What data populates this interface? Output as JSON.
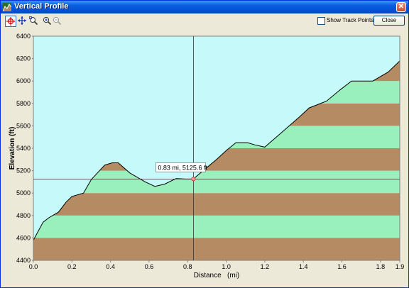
{
  "window": {
    "title": "Vertical Profile"
  },
  "toolbar": {
    "tools": [
      {
        "name": "crosshair-tool-icon",
        "active": true
      },
      {
        "name": "pan-tool-icon",
        "active": false
      },
      {
        "name": "zoom-box-tool-icon",
        "active": false
      },
      {
        "name": "zoom-in-icon",
        "active": false
      },
      {
        "name": "zoom-out-icon",
        "active": false
      }
    ],
    "show_track_points_label": "Show Track Points",
    "show_track_points_checked": false,
    "close_label": "Close"
  },
  "chart_data": {
    "type": "area",
    "xlabel": "Distance   (mi)",
    "ylabel": "Elevation (ft)",
    "xlim": [
      0.0,
      1.9
    ],
    "ylim": [
      4400,
      6400
    ],
    "x_ticks": [
      "0.0",
      "0.2",
      "0.4",
      "0.6",
      "0.8",
      "1.0",
      "1.2",
      "1.4",
      "1.6",
      "1.8",
      "1.9"
    ],
    "x_tick_values": [
      0.0,
      0.2,
      0.4,
      0.6,
      0.8,
      1.0,
      1.2,
      1.4,
      1.6,
      1.8,
      1.9
    ],
    "y_ticks": [
      "4400",
      "4600",
      "4800",
      "5000",
      "5200",
      "5400",
      "5600",
      "5800",
      "6000",
      "6200",
      "6400"
    ],
    "y_tick_values": [
      4400,
      4600,
      4800,
      5000,
      5200,
      5400,
      5600,
      5800,
      6000,
      6200,
      6400
    ],
    "band_interval": 200,
    "band_colors": [
      "#b48b62",
      "#99f0bd"
    ],
    "sky_color": "#c6fafa",
    "line_color": "#000000",
    "grid": false,
    "series": [
      {
        "x": [
          0.0,
          0.05,
          0.08,
          0.13,
          0.17,
          0.2,
          0.26,
          0.3,
          0.37,
          0.41,
          0.44,
          0.5,
          0.58,
          0.63,
          0.68,
          0.74,
          0.79,
          0.83,
          0.88,
          0.95,
          1.0,
          1.05,
          1.11,
          1.15,
          1.2,
          1.26,
          1.32,
          1.38,
          1.43,
          1.52,
          1.59,
          1.65,
          1.76,
          1.84,
          1.9
        ],
        "y": [
          4580,
          4740,
          4780,
          4830,
          4920,
          4970,
          5000,
          5120,
          5250,
          5270,
          5270,
          5180,
          5100,
          5060,
          5080,
          5130,
          5125,
          5126,
          5200,
          5300,
          5380,
          5450,
          5450,
          5430,
          5410,
          5500,
          5590,
          5680,
          5760,
          5820,
          5920,
          6000,
          6000,
          6080,
          6180
        ]
      }
    ],
    "cursor": {
      "x": 0.83,
      "y": 5125.6,
      "label": "0.83 mi, 5125.6 ft"
    }
  }
}
